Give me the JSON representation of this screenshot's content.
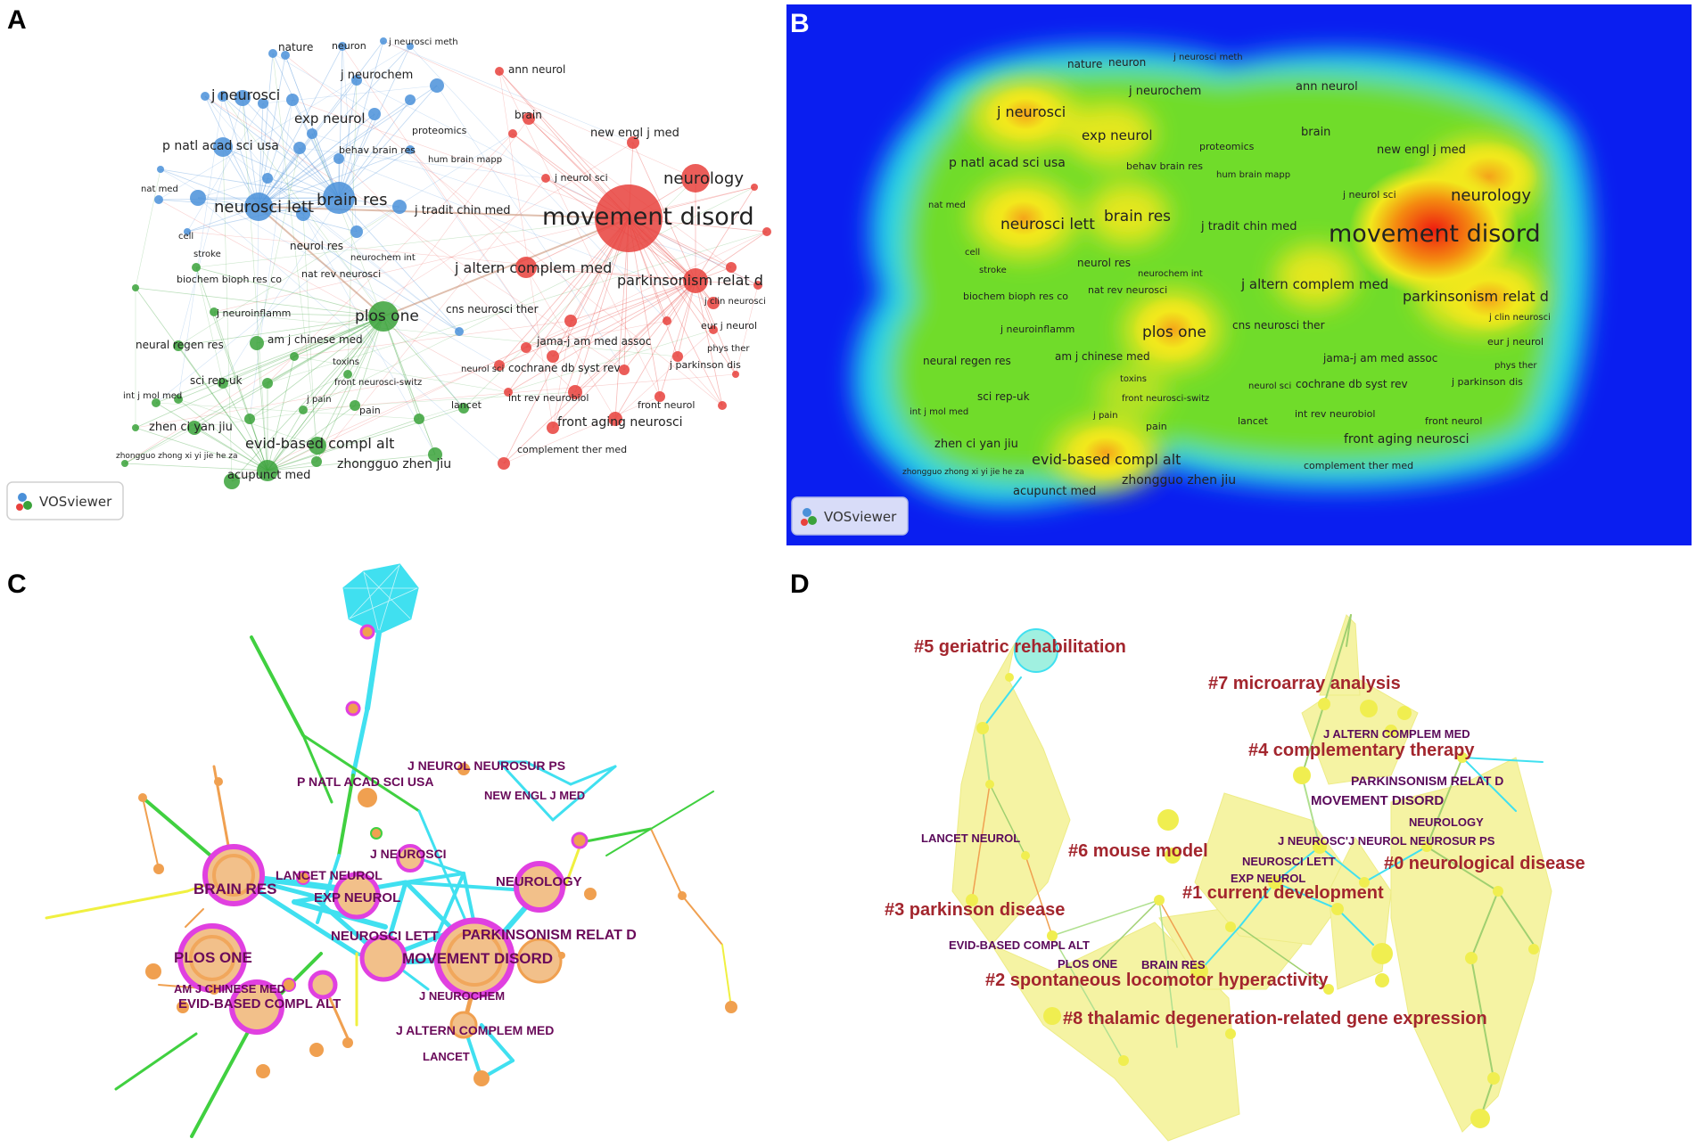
{
  "panels": {
    "a": {
      "letter": "A",
      "logo": "VOSviewer",
      "labels": {
        "nature": "nature",
        "neuron": "neuron",
        "j_neurosci_meth": "j neurosci meth",
        "j_neurochem": "j neurochem",
        "ann_neurol": "ann neurol",
        "j_neurosci": "j neurosci",
        "exp_neurol": "exp neurol",
        "brain": "brain",
        "proteomics": "proteomics",
        "p_natl_acad_sci_usa": "p natl acad sci usa",
        "new_engl_j_med": "new engl j med",
        "behav_brain_res": "behav brain res",
        "hum_brain_mapp": "hum brain mapp",
        "j_neurol_sci": "j neurol sci",
        "neurology": "neurology",
        "nat_med": "nat med",
        "neurosci_lett": "neurosci lett",
        "brain_res": "brain res",
        "j_tradit_chin_med": "j tradit chin med",
        "movement_disord": "movement disord",
        "cell": "cell",
        "stroke": "stroke",
        "neurol_res": "neurol res",
        "neurochem_int": "neurochem int",
        "j_altern_complem_med": "j altern complem med",
        "biochem_bioph_res_co": "biochem bioph res co",
        "nat_rev_neurosci": "nat rev neurosci",
        "parkinsonism_relat_d": "parkinsonism relat d",
        "j_clin_neurosci": "j clin neurosci",
        "j_neuroinflamm": "j neuroinflamm",
        "plos_one": "plos one",
        "cns_neurosci_ther": "cns neurosci ther",
        "eur_j_neurol": "eur j neurol",
        "neural_regen_res": "neural regen res",
        "am_j_chinese_med": "am j chinese med",
        "jama_j_am_med_assoc": "jama-j am med assoc",
        "phys_ther": "phys ther",
        "toxins": "toxins",
        "j_parkinson_dis": "j parkinson dis",
        "neurol_sci": "neurol sci",
        "cochrane_db_syst_rev": "cochrane db syst rev",
        "sci_rep_uk": "sci rep-uk",
        "front_neurosci_switz": "front neurosci-switz",
        "int_j_mol_med": "int j mol med",
        "j_pain": "j pain",
        "lancet": "lancet",
        "int_rev_neurobiol": "int rev neurobiol",
        "front_neurol": "front neurol",
        "pain": "pain",
        "zhen_ci_yan_jiu": "zhen ci yan jiu",
        "front_aging_neurosci": "front aging neurosci",
        "evid_based_compl_alt": "evid-based compl alt",
        "complement_ther_med": "complement ther med",
        "zhongguo_zhong_xi_yi_jie_he_za": "zhongguo zhong xi yi jie he za",
        "zhongguo_zhen_jiu": "zhongguo zhen jiu",
        "acupunct_med": "acupunct med"
      },
      "colors": {
        "blue": "#4a90d9",
        "red": "#e8413c",
        "green": "#3aa23a"
      }
    },
    "b": {
      "letter": "B",
      "logo": "VOSviewer",
      "labels": {
        "nature": "nature",
        "neuron": "neuron",
        "j_neurosci_meth": "j neurosci meth",
        "j_neurochem": "j neurochem",
        "ann_neurol": "ann neurol",
        "j_neurosci": "j neurosci",
        "exp_neurol": "exp neurol",
        "brain": "brain",
        "proteomics": "proteomics",
        "new_engl_j_med": "new engl j med",
        "p_natl_acad_sci_usa": "p natl acad sci usa",
        "behav_brain_res": "behav brain res",
        "hum_brain_mapp": "hum brain mapp",
        "j_neurol_sci": "j neurol sci",
        "neurology": "neurology",
        "nat_med": "nat med",
        "neurosci_lett": "neurosci lett",
        "brain_res": "brain res",
        "j_tradit_chin_med": "j tradit chin med",
        "movement_disord": "movement disord",
        "cell": "cell",
        "neurol_res": "neurol res",
        "stroke": "stroke",
        "neurochem_int": "neurochem int",
        "j_altern_complem_med": "j altern complem med",
        "biochem_bioph_res_co": "biochem bioph res co",
        "nat_rev_neurosci": "nat rev neurosci",
        "parkinsonism_relat_d": "parkinsonism relat d",
        "j_clin_neurosci": "j clin neurosci",
        "plos_one": "plos one",
        "cns_neurosci_ther": "cns neurosci ther",
        "j_neuroinflamm": "j neuroinflamm",
        "eur_j_neurol": "eur j neurol",
        "neural_regen_res": "neural regen res",
        "am_j_chinese_med": "am j chinese med",
        "jama_j_am_med_assoc": "jama-j am med assoc",
        "phys_ther": "phys ther",
        "toxins": "toxins",
        "j_parkinson_dis": "j parkinson dis",
        "neurol_sci": "neurol sci",
        "cochrane_db_syst_rev": "cochrane db syst rev",
        "front_neurosci_switz": "front neurosci-switz",
        "sci_rep_uk": "sci rep-uk",
        "int_j_mol_med": "int j mol med",
        "j_pain": "j pain",
        "int_rev_neurobiol": "int rev neurobiol",
        "lancet": "lancet",
        "front_neurol": "front neurol",
        "pain": "pain",
        "zhen_ci_yan_jiu": "zhen ci yan jiu",
        "front_aging_neurosci": "front aging neurosci",
        "evid_based_compl_alt": "evid-based compl alt",
        "complement_ther_med": "complement ther med",
        "zhongguo_zhong_xi_yi_jie_he_za": "zhongguo zhong xi yi jie he za",
        "zhongguo_zhen_jiu": "zhongguo zhen jiu",
        "acupunct_med": "acupunct med"
      },
      "colors": {
        "background": "#0a1ef0",
        "low": "#22d4e8",
        "mid": "#6fdc2a",
        "high": "#f2e81c",
        "peak": "#ee1c10"
      }
    },
    "c": {
      "letter": "C",
      "labels": {
        "j_neurol_neurosur_ps": "J NEUROL NEUROSUR PS",
        "p_natl_acad_sci_usa": "P NATL ACAD SCI USA",
        "new_engl_j_med": "NEW ENGL J MED",
        "j_neurosci": "J NEUROSCI",
        "lancet_neurol": "LANCET NEUROL",
        "neurology": "NEUROLOGY",
        "brain_res": "BRAIN RES",
        "exp_neurol": "EXP NEUROL",
        "neurosci_lett": "NEUROSCI LETT",
        "parkinsonism_relat_d": "PARKINSONISM RELAT D",
        "plos_one": "PLOS ONE",
        "movement_disord": "MOVEMENT DISORD",
        "am_j_chinese_med": "AM J CHINESE MED",
        "j_neurochem": "J NEUROCHEM",
        "evid_based_compl_alt": "EVID-BASED COMPL ALT",
        "j_altern_complem_med": "J ALTERN COMPLEM MED",
        "lancet": "LANCET"
      },
      "colors": {
        "magenta": "#e040e0",
        "cyan": "#40e0f0",
        "green": "#40d040",
        "orange": "#f0a050",
        "yellow": "#f0f040"
      }
    },
    "d": {
      "letter": "D",
      "clusters": {
        "c5": "#5 geriatric rehabilitation",
        "c7": "#7 microarray analysis",
        "c4": "#4 complementary therapy",
        "c6": "#6 mouse model",
        "c0": "#0 neurological disease",
        "c1": "#1 current development",
        "c3": "#3 parkinson disease",
        "c2": "#2 spontaneous locomotor hyperactivity",
        "c8": "#8 thalamic degeneration-related gene expression"
      },
      "labels": {
        "j_altern_complem_med": "J ALTERN COMPLEM MED",
        "parkinsonism_relat_d": "PARKINSONISM RELAT D",
        "movement_disord": "MOVEMENT DISORD",
        "lancet_neurol": "LANCET NEUROL",
        "neurology": "NEUROLOGY",
        "j_neurosci_j_neurol": "J NEUROSC'J NEUROL NEUROSUR PS",
        "neurosci_lett": "NEUROSCI LETT",
        "exp_neurol": "EXP NEUROL",
        "evid_based_compl_alt": "EVID-BASED COMPL ALT",
        "plos_one": "PLOS ONE",
        "brain_res": "BRAIN RES"
      },
      "colors": {
        "hull": "#f5f29a",
        "node": "#f0ee50",
        "label_cluster": "#a3262e",
        "label_journal": "#5a0a5a"
      }
    }
  }
}
